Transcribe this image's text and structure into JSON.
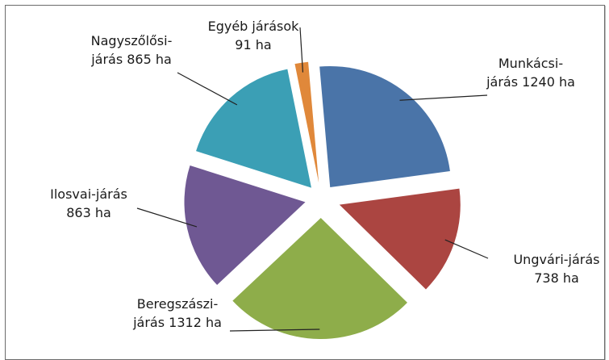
{
  "chart_data": {
    "type": "pie",
    "title": "",
    "unit": "ha",
    "slices": [
      {
        "name": "Munkácsi-járás",
        "label_lines": [
          "Munkácsi-",
          "járás 1240 ha"
        ],
        "value": 1240,
        "color": "#4a74a8"
      },
      {
        "name": "Ungvári-járás",
        "label_lines": [
          "Ungvári-járás",
          "738 ha"
        ],
        "value": 738,
        "color": "#ab4541"
      },
      {
        "name": "Beregszászi-járás",
        "label_lines": [
          "Beregszászi-",
          "járás 1312 ha"
        ],
        "value": 1312,
        "color": "#8ead4a"
      },
      {
        "name": "Ilosvai-járás",
        "label_lines": [
          "Ilosvai-járás",
          "863 ha"
        ],
        "value": 863,
        "color": "#6f5893"
      },
      {
        "name": "Nagyszőlősi-járás",
        "label_lines": [
          "Nagyszőlősi-",
          "járás 865 ha"
        ],
        "value": 865,
        "color": "#3b9fb5"
      },
      {
        "name": "Egyéb járások",
        "label_lines": [
          "Egyéb járások",
          "91 ha"
        ],
        "value": 91,
        "color": "#e0883a"
      }
    ]
  }
}
